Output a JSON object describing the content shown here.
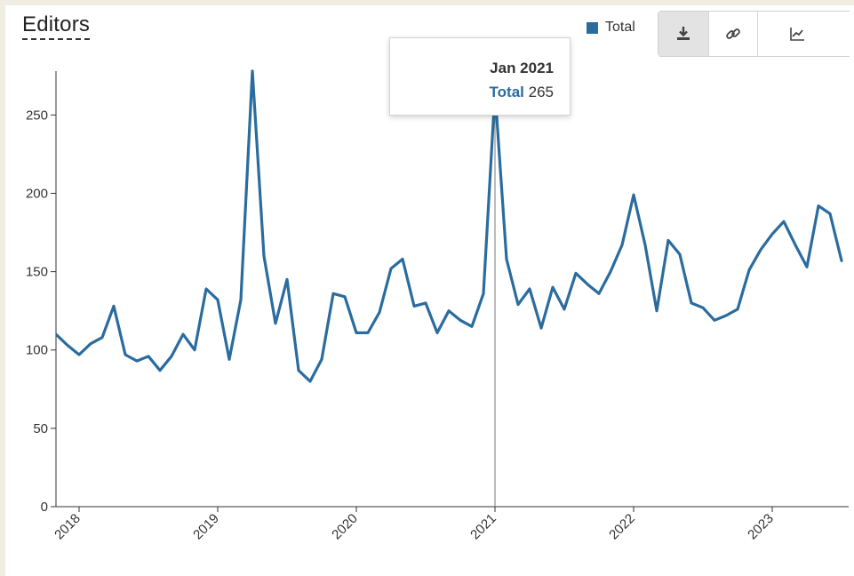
{
  "header": {
    "title": "Editors"
  },
  "legend": {
    "label": "Total",
    "color": "#2a6c9e"
  },
  "toolbar": [
    {
      "name": "download-icon",
      "active": true
    },
    {
      "name": "link-icon",
      "active": false
    },
    {
      "name": "line-chart-icon",
      "active": false
    }
  ],
  "tooltip": {
    "date": "Jan 2021",
    "series": "Total",
    "value": "265"
  },
  "chart_data": {
    "type": "line",
    "title": "Editors",
    "xlabel": "",
    "ylabel": "",
    "ylim": [
      0,
      278
    ],
    "yticks": [
      0,
      50,
      100,
      150,
      200,
      250
    ],
    "xticks": [
      "2018",
      "2019",
      "2020",
      "2021",
      "2022",
      "2023"
    ],
    "grid": false,
    "legend_position": "top-right",
    "color": "#2a6c9e",
    "highlight_date": "2021-01",
    "series": [
      {
        "name": "Total",
        "dates": [
          "2017-11",
          "2017-12",
          "2018-01",
          "2018-02",
          "2018-03",
          "2018-04",
          "2018-05",
          "2018-06",
          "2018-07",
          "2018-08",
          "2018-09",
          "2018-10",
          "2018-11",
          "2018-12",
          "2019-01",
          "2019-02",
          "2019-03",
          "2019-04",
          "2019-05",
          "2019-06",
          "2019-07",
          "2019-08",
          "2019-09",
          "2019-10",
          "2019-11",
          "2019-12",
          "2020-01",
          "2020-02",
          "2020-03",
          "2020-04",
          "2020-05",
          "2020-06",
          "2020-07",
          "2020-08",
          "2020-09",
          "2020-10",
          "2020-11",
          "2020-12",
          "2021-01",
          "2021-02",
          "2021-03",
          "2021-04",
          "2021-05",
          "2021-06",
          "2021-07",
          "2021-08",
          "2021-09",
          "2021-10",
          "2021-11",
          "2021-12",
          "2022-01",
          "2022-02",
          "2022-03",
          "2022-04",
          "2022-05",
          "2022-06",
          "2022-07",
          "2022-08",
          "2022-09",
          "2022-10",
          "2022-11",
          "2022-12",
          "2023-01",
          "2023-02",
          "2023-03",
          "2023-04",
          "2023-05",
          "2023-06",
          "2023-07"
        ],
        "values": [
          110,
          103,
          97,
          104,
          108,
          128,
          97,
          93,
          96,
          87,
          96,
          110,
          100,
          139,
          132,
          94,
          132,
          278,
          160,
          117,
          145,
          87,
          80,
          94,
          136,
          134,
          111,
          111,
          124,
          152,
          158,
          128,
          130,
          111,
          125,
          119,
          115,
          136,
          265,
          158,
          129,
          139,
          114,
          140,
          126,
          149,
          142,
          136,
          150,
          167,
          199,
          167,
          125,
          170,
          161,
          130,
          127,
          119,
          122,
          126,
          151,
          164,
          174,
          182,
          167,
          153,
          192,
          187,
          157
        ]
      }
    ]
  }
}
